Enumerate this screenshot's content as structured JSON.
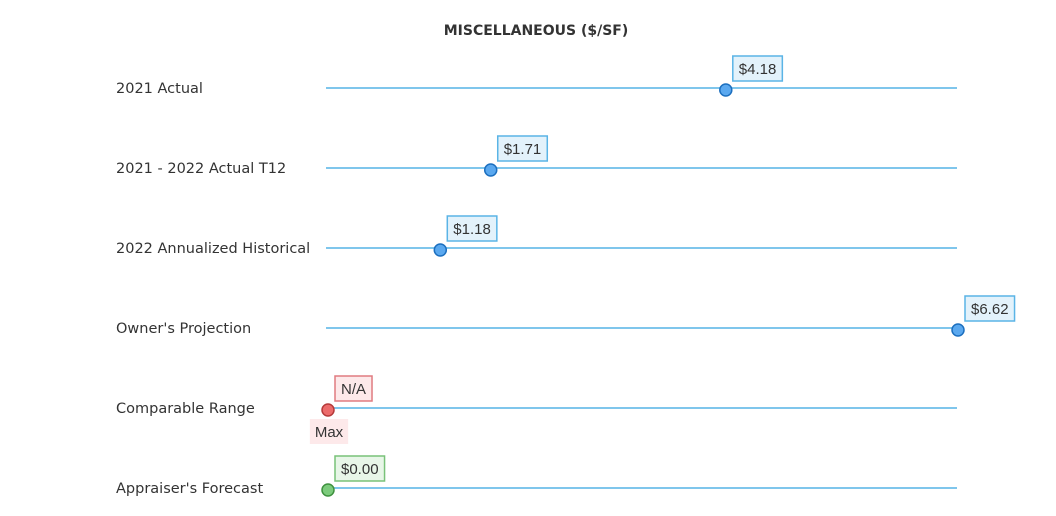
{
  "chart_data": {
    "type": "scatter",
    "title": "MISCELLANEOUS ($/SF)",
    "xlim": [
      0,
      6.62
    ],
    "grid": false,
    "categories": [
      "2021 Actual",
      "2021 - 2022 Actual T12",
      "2022 Annualized Historical",
      "Owner's Projection",
      "Comparable Range",
      "Appraiser's Forecast"
    ],
    "points": [
      {
        "category": "2021 Actual",
        "value": 4.18,
        "label": "$4.18",
        "color": "#5aa8ef",
        "stroke": "#1c6fbf",
        "label_fill": "#e3f2fb",
        "label_border": "#5ab4e6"
      },
      {
        "category": "2021 - 2022 Actual T12",
        "value": 1.71,
        "label": "$1.71",
        "color": "#5aa8ef",
        "stroke": "#1c6fbf",
        "label_fill": "#e3f2fb",
        "label_border": "#5ab4e6"
      },
      {
        "category": "2022 Annualized Historical",
        "value": 1.18,
        "label": "$1.18",
        "color": "#5aa8ef",
        "stroke": "#1c6fbf",
        "label_fill": "#e3f2fb",
        "label_border": "#5ab4e6"
      },
      {
        "category": "Owner's Projection",
        "value": 6.62,
        "label": "$6.62",
        "color": "#5aa8ef",
        "stroke": "#1c6fbf",
        "label_fill": "#e3f2fb",
        "label_border": "#5ab4e6"
      },
      {
        "category": "Comparable Range",
        "value": 0,
        "label": "N/A",
        "sub_label": "Max",
        "color": "#ec6b6b",
        "stroke": "#b53a3a",
        "label_fill": "#fde9ea",
        "label_border": "#e07b80"
      },
      {
        "category": "Appraiser's Forecast",
        "value": 0.0,
        "label": "$0.00",
        "color": "#7ccb7c",
        "stroke": "#3f913f",
        "label_fill": "#e8f6e8",
        "label_border": "#79c279"
      }
    ],
    "track_color": "#7fc6ec"
  }
}
